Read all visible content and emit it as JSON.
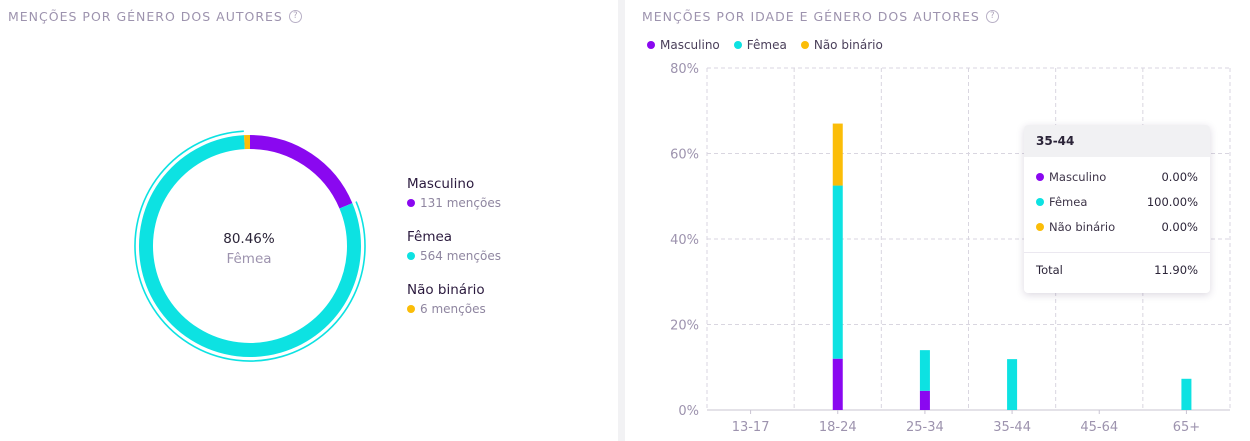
{
  "left_panel": {
    "title": "MENÇÕES POR GÉNERO DOS AUTORES",
    "help_icon": "?",
    "center_percent": "80.46%",
    "center_label": "Fêmea",
    "legend": [
      {
        "name": "Masculino",
        "count": "131 menções",
        "color": "#8a08f0"
      },
      {
        "name": "Fêmea",
        "count": "564 menções",
        "color": "#0de2e2"
      },
      {
        "name": "Não binário",
        "count": "6 menções",
        "color": "#fbbd08"
      }
    ]
  },
  "right_panel": {
    "title": "MENÇÕES POR IDADE E GÉNERO DOS AUTORES",
    "help_icon": "?",
    "legend": [
      {
        "name": "Masculino",
        "color": "#8a08f0"
      },
      {
        "name": "Fêmea",
        "color": "#0de2e2"
      },
      {
        "name": "Não binário",
        "color": "#fbbd08"
      }
    ],
    "tooltip": {
      "title": "35-44",
      "rows": [
        {
          "label": "Masculino",
          "value": "0.00%",
          "color": "#8a08f0"
        },
        {
          "label": "Fêmea",
          "value": "100.00%",
          "color": "#0de2e2"
        },
        {
          "label": "Não binário",
          "value": "0.00%",
          "color": "#fbbd08"
        }
      ],
      "total_label": "Total",
      "total_value": "11.90%"
    }
  },
  "chart_data": [
    {
      "type": "pie",
      "style": "donut",
      "categories": [
        "Masculino",
        "Fêmea",
        "Não binário"
      ],
      "values": [
        131,
        564,
        6
      ],
      "colors": [
        "#8a08f0",
        "#0de2e2",
        "#fbbd08"
      ],
      "highlighted": "Fêmea"
    },
    {
      "type": "bar",
      "stacked": true,
      "categories": [
        "13-17",
        "18-24",
        "25-34",
        "35-44",
        "45-64",
        "65+"
      ],
      "y_tick_labels": [
        "0%",
        "20%",
        "40%",
        "60%",
        "80%"
      ],
      "series": [
        {
          "name": "Masculino",
          "color": "#8a08f0",
          "values": [
            0,
            12,
            4.5,
            0,
            0,
            0
          ]
        },
        {
          "name": "Fêmea",
          "color": "#0de2e2",
          "values": [
            0,
            40.5,
            9.5,
            11.9,
            0,
            7.3
          ]
        },
        {
          "name": "Não binário",
          "color": "#fbbd08",
          "values": [
            0,
            14.5,
            0,
            0,
            0,
            0
          ]
        }
      ],
      "ylim": [
        0,
        80
      ],
      "grid": true,
      "legend": "top-left"
    }
  ]
}
